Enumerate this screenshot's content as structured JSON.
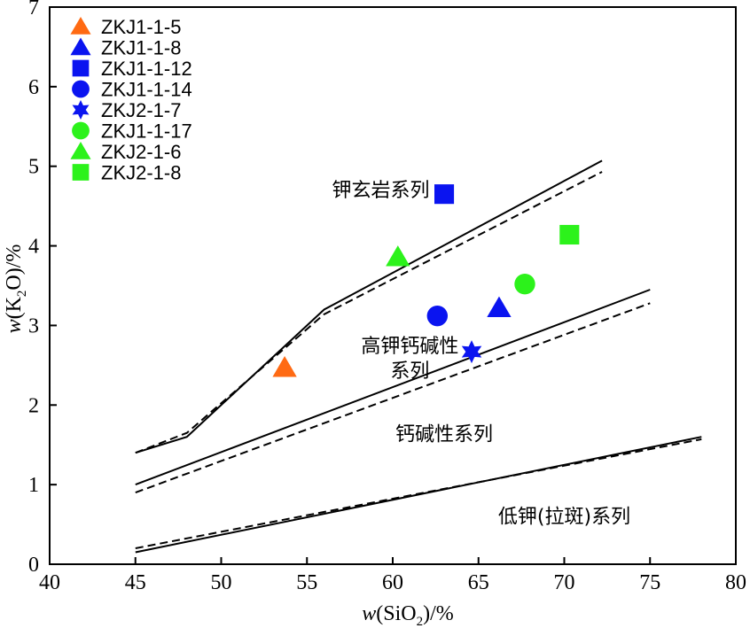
{
  "chart_data": {
    "type": "scatter",
    "xlabel_parts": [
      "w",
      "(SiO",
      "2",
      ")/%"
    ],
    "ylabel_parts": [
      "w",
      "(K",
      "2",
      "O)/%"
    ],
    "xlim": [
      40,
      80
    ],
    "ylim": [
      0,
      7
    ],
    "x_ticks": [
      40,
      45,
      50,
      55,
      60,
      65,
      70,
      75,
      80
    ],
    "y_ticks": [
      0,
      1,
      2,
      3,
      4,
      5,
      6,
      7
    ],
    "grid": false,
    "legend_position": "top-left",
    "series": [
      {
        "name": "ZKJ1-1-5",
        "marker": "triangle",
        "color": "#FF6A13",
        "points": [
          [
            53.7,
            2.47
          ]
        ]
      },
      {
        "name": "ZKJ1-1-8",
        "marker": "triangle",
        "color": "#0A14F0",
        "points": [
          [
            66.2,
            3.22
          ]
        ]
      },
      {
        "name": "ZKJ1-1-12",
        "marker": "square",
        "color": "#0A14F0",
        "points": [
          [
            63.0,
            4.65
          ]
        ]
      },
      {
        "name": "ZKJ1-1-14",
        "marker": "circle",
        "color": "#0A14F0",
        "points": [
          [
            62.6,
            3.12
          ]
        ]
      },
      {
        "name": "ZKJ2-1-7",
        "marker": "star",
        "color": "#0A14F0",
        "points": [
          [
            64.6,
            2.67
          ]
        ]
      },
      {
        "name": "ZKJ1-1-17",
        "marker": "circle",
        "color": "#2CF21B",
        "points": [
          [
            67.7,
            3.52
          ]
        ]
      },
      {
        "name": "ZKJ2-1-6",
        "marker": "triangle",
        "color": "#2CF21B",
        "points": [
          [
            60.3,
            3.86
          ]
        ]
      },
      {
        "name": "ZKJ2-1-8",
        "marker": "square",
        "color": "#2CF21B",
        "points": [
          [
            70.3,
            4.14
          ]
        ]
      }
    ],
    "boundary_lines": [
      {
        "style": "solid",
        "points": [
          [
            45,
            1.4
          ],
          [
            48,
            1.6
          ],
          [
            56,
            3.2
          ],
          [
            72.2,
            5.07
          ]
        ]
      },
      {
        "style": "dashed",
        "points": [
          [
            45,
            1.4
          ],
          [
            48,
            1.65
          ],
          [
            56,
            3.14
          ],
          [
            72.2,
            4.93
          ]
        ]
      },
      {
        "style": "solid",
        "points": [
          [
            45,
            1.0
          ],
          [
            75,
            3.45
          ]
        ]
      },
      {
        "style": "dashed",
        "points": [
          [
            45,
            0.9
          ],
          [
            75,
            3.28
          ]
        ]
      },
      {
        "style": "solid",
        "points": [
          [
            45,
            0.15
          ],
          [
            78,
            1.6
          ]
        ]
      },
      {
        "style": "dashed",
        "points": [
          [
            45,
            0.2
          ],
          [
            78,
            1.57
          ]
        ]
      }
    ],
    "region_labels": [
      {
        "lines": [
          "钾玄岩系列"
        ],
        "at": [
          59.3,
          4.62
        ]
      },
      {
        "lines": [
          "高钾钙碱性",
          "系列"
        ],
        "at": [
          61.0,
          2.66
        ]
      },
      {
        "lines": [
          "钙碱性系列"
        ],
        "at": [
          63.0,
          1.55
        ]
      },
      {
        "lines": [
          "低钾(拉斑)系列"
        ],
        "at": [
          70.0,
          0.52
        ]
      }
    ]
  }
}
